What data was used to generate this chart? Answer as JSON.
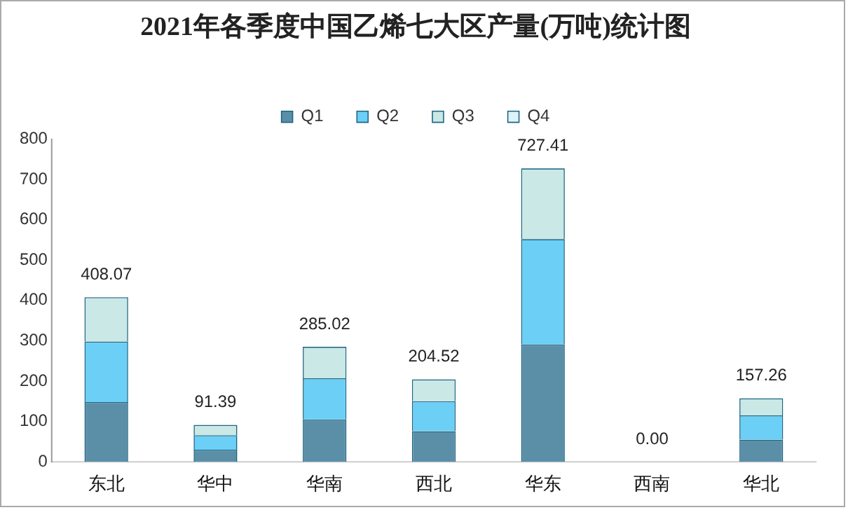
{
  "chart_data": {
    "type": "bar",
    "title": "2021年各季度中国乙烯七大区产量(万吨)统计图",
    "categories": [
      "东北",
      "华中",
      "华南",
      "西北",
      "华东",
      "西南",
      "华北"
    ],
    "series": [
      {
        "name": "Q1",
        "color": "#5b8fa8",
        "values": [
          148,
          30,
          105,
          76,
          291,
          0,
          55
        ]
      },
      {
        "name": "Q2",
        "color": "#6bcff6",
        "values": [
          150,
          36,
          102,
          74,
          261,
          0,
          60
        ]
      },
      {
        "name": "Q3",
        "color": "#c9e8e6",
        "values": [
          110.07,
          25.39,
          78.02,
          54.52,
          175.41,
          0,
          42.26
        ]
      },
      {
        "name": "Q4",
        "color": "#ddf3fb",
        "values": [
          0,
          0,
          0,
          0,
          0,
          0,
          0
        ]
      }
    ],
    "stacked": true,
    "totals": [
      "408.07",
      "91.39",
      "285.02",
      "204.52",
      "727.41",
      "0.00",
      "157.26"
    ],
    "ylim": [
      0,
      800
    ],
    "yticks": [
      0,
      100,
      200,
      300,
      400,
      500,
      600,
      700,
      800
    ],
    "grid": false,
    "legend": "top"
  }
}
